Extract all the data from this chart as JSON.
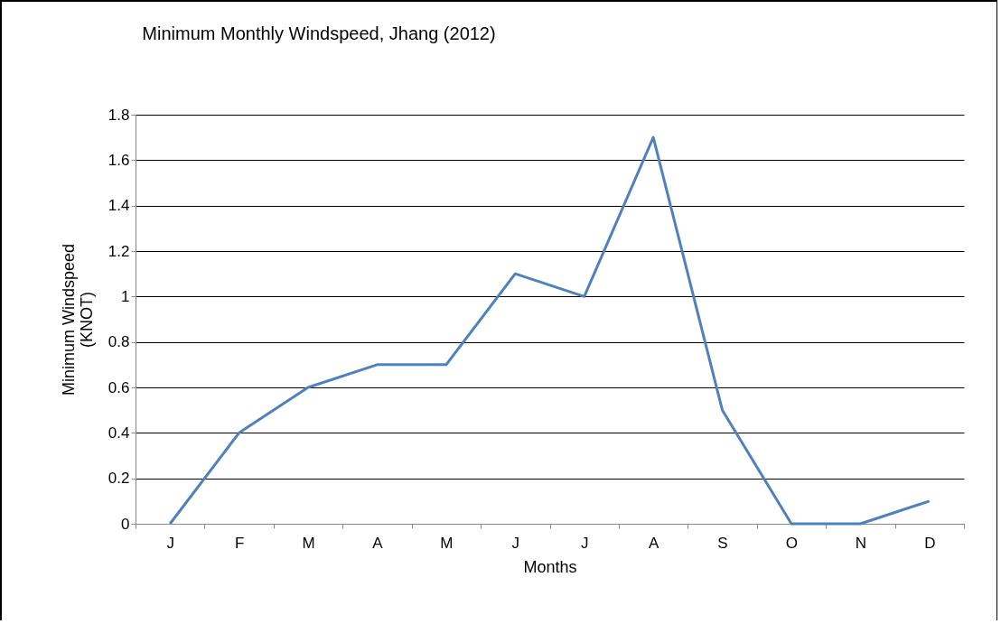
{
  "chart_data": {
    "type": "line",
    "title": "Minimum Monthly Windspeed, Jhang (2012)",
    "xlabel": "Months",
    "ylabel": "Minimum Windspeed\n(KNOT)",
    "categories": [
      "J",
      "F",
      "M",
      "A",
      "M",
      "J",
      "J",
      "A",
      "S",
      "O",
      "N",
      "D"
    ],
    "series": [
      {
        "color": "#4f81bd",
        "values": [
          0,
          0.4,
          0.6,
          0.7,
          0.7,
          1.1,
          1.0,
          1.7,
          0.5,
          0,
          0,
          0.1
        ]
      }
    ],
    "ylim": [
      0,
      1.8
    ],
    "yticks": [
      0,
      0.2,
      0.4,
      0.6,
      0.8,
      1,
      1.2,
      1.4,
      1.6,
      1.8
    ],
    "grid": "y",
    "marker": "none",
    "line_style": "solid"
  }
}
